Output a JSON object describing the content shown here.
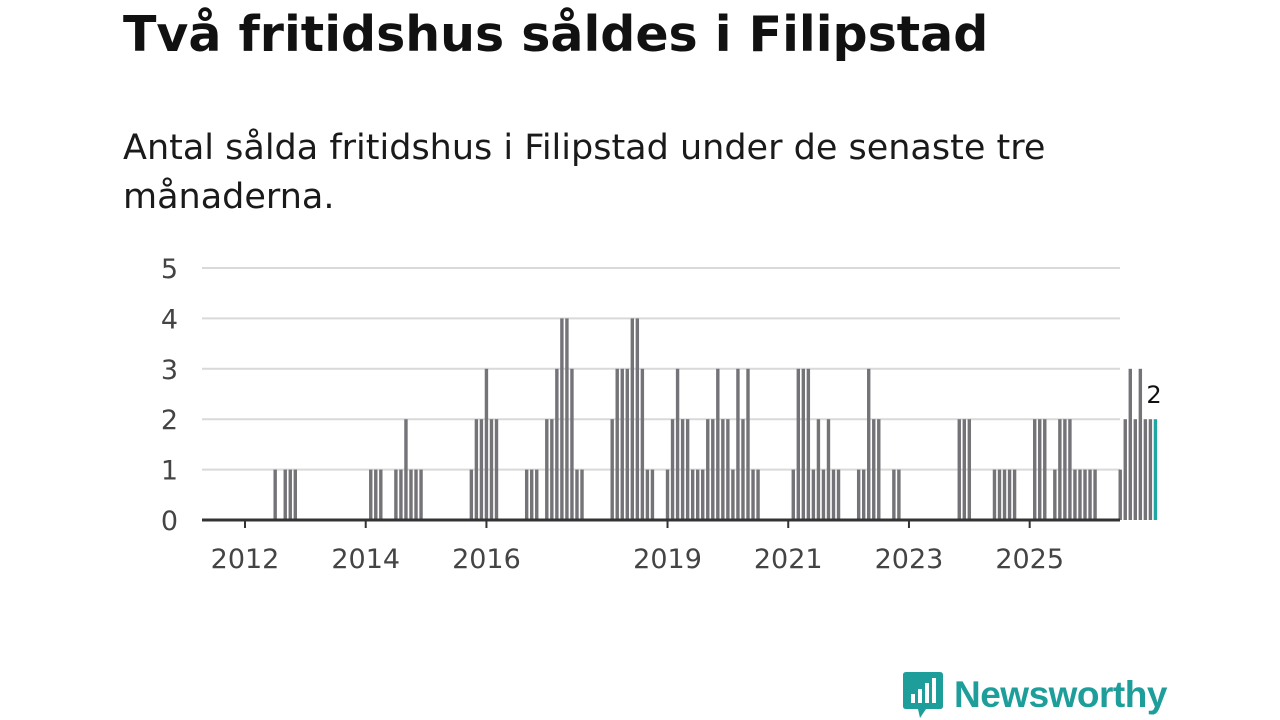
{
  "title": "Två fritidshus såldes i Filipstad",
  "subtitle": "Antal sålda fritidshus i Filipstad under de senaste tre månaderna.",
  "brand": {
    "name": "Newsworthy",
    "logo_icon": "bar-chart-speech-bubble-icon"
  },
  "colors": {
    "bar": "#737378",
    "highlight": "#1fa8a3",
    "grid": "#d9d9d9",
    "axis": "#333333",
    "brand": "#1e9e9b"
  },
  "chart_data": {
    "type": "bar",
    "title": "Två fritidshus såldes i Filipstad",
    "xlabel": "",
    "ylabel": "",
    "ylim": [
      0,
      5
    ],
    "yticks": [
      0,
      1,
      2,
      3,
      4,
      5
    ],
    "xticks": [
      {
        "label": "2012",
        "month_index": 11
      },
      {
        "label": "2014",
        "month_index": 35
      },
      {
        "label": "2016",
        "month_index": 59
      },
      {
        "label": "2019",
        "month_index": 95
      },
      {
        "label": "2021",
        "month_index": 119
      },
      {
        "label": "2023",
        "month_index": 143
      },
      {
        "label": "2025",
        "month_index": 167
      }
    ],
    "bar_unit": "month",
    "first_month": "2011-01",
    "values": [
      0,
      0,
      0,
      0,
      0,
      0,
      0,
      0,
      0,
      0,
      0,
      0,
      0,
      0,
      0,
      0,
      0,
      1,
      0,
      1,
      1,
      1,
      0,
      0,
      0,
      0,
      0,
      0,
      0,
      0,
      0,
      0,
      0,
      0,
      0,
      0,
      1,
      1,
      1,
      0,
      0,
      1,
      1,
      2,
      1,
      1,
      1,
      0,
      0,
      0,
      0,
      0,
      0,
      0,
      0,
      0,
      1,
      2,
      2,
      3,
      2,
      2,
      0,
      0,
      0,
      0,
      0,
      1,
      1,
      1,
      0,
      2,
      2,
      3,
      4,
      4,
      3,
      1,
      1,
      0,
      0,
      0,
      0,
      0,
      2,
      3,
      3,
      3,
      4,
      4,
      3,
      1,
      1,
      0,
      0,
      1,
      2,
      3,
      2,
      2,
      1,
      1,
      1,
      2,
      2,
      3,
      2,
      2,
      1,
      3,
      2,
      3,
      1,
      1,
      0,
      0,
      0,
      0,
      0,
      0,
      1,
      3,
      3,
      3,
      1,
      2,
      1,
      2,
      1,
      1,
      0,
      0,
      0,
      1,
      1,
      3,
      2,
      2,
      0,
      0,
      1,
      1,
      0,
      0,
      0,
      0,
      0,
      0,
      0,
      0,
      0,
      0,
      0,
      2,
      2,
      2,
      0,
      0,
      0,
      0,
      1,
      1,
      1,
      1,
      1,
      0,
      0,
      0,
      2,
      2,
      2,
      0,
      1,
      2,
      2,
      2,
      1,
      1,
      1,
      1,
      1,
      0,
      0,
      0,
      0,
      1,
      2,
      3,
      2,
      3,
      2,
      2,
      2
    ],
    "highlight_last": true,
    "last_value_label": "2"
  }
}
